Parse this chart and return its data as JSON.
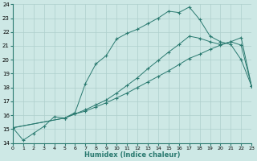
{
  "xlabel": "Humidex (Indice chaleur)",
  "xlim": [
    0,
    23
  ],
  "ylim": [
    14,
    24
  ],
  "xticks": [
    0,
    1,
    2,
    3,
    4,
    5,
    6,
    7,
    8,
    9,
    10,
    11,
    12,
    13,
    14,
    15,
    16,
    17,
    18,
    19,
    20,
    21,
    22,
    23
  ],
  "yticks": [
    14,
    15,
    16,
    17,
    18,
    19,
    20,
    21,
    22,
    23,
    24
  ],
  "bg_color": "#cde8e5",
  "grid_color": "#aecfcc",
  "line_color": "#2a7a70",
  "line1_x": [
    0,
    1,
    2,
    3,
    4,
    5,
    6,
    7,
    8,
    9,
    10,
    11,
    12,
    13,
    14,
    15,
    16,
    17,
    18,
    19,
    20,
    21,
    22,
    23
  ],
  "line1_y": [
    15.1,
    14.2,
    14.7,
    15.2,
    15.9,
    15.8,
    16.2,
    18.3,
    19.7,
    20.3,
    21.5,
    21.9,
    22.2,
    22.6,
    23.0,
    23.5,
    23.4,
    23.8,
    22.9,
    21.7,
    21.3,
    21.1,
    20.0,
    18.1
  ],
  "line2_x": [
    0,
    5,
    6,
    7,
    8,
    9,
    10,
    11,
    12,
    13,
    14,
    15,
    16,
    17,
    18,
    19,
    20,
    21,
    22,
    23
  ],
  "line2_y": [
    15.1,
    15.8,
    16.1,
    16.3,
    16.6,
    16.9,
    17.25,
    17.6,
    18.0,
    18.4,
    18.8,
    19.2,
    19.65,
    20.1,
    20.4,
    20.75,
    21.05,
    21.3,
    21.6,
    18.1
  ],
  "line3_x": [
    0,
    5,
    6,
    7,
    8,
    9,
    10,
    11,
    12,
    13,
    14,
    15,
    16,
    17,
    18,
    19,
    20,
    21,
    22,
    23
  ],
  "line3_y": [
    15.1,
    15.8,
    16.1,
    16.4,
    16.75,
    17.1,
    17.6,
    18.15,
    18.7,
    19.35,
    19.95,
    20.55,
    21.1,
    21.7,
    21.55,
    21.3,
    21.1,
    21.3,
    21.05,
    18.1
  ]
}
